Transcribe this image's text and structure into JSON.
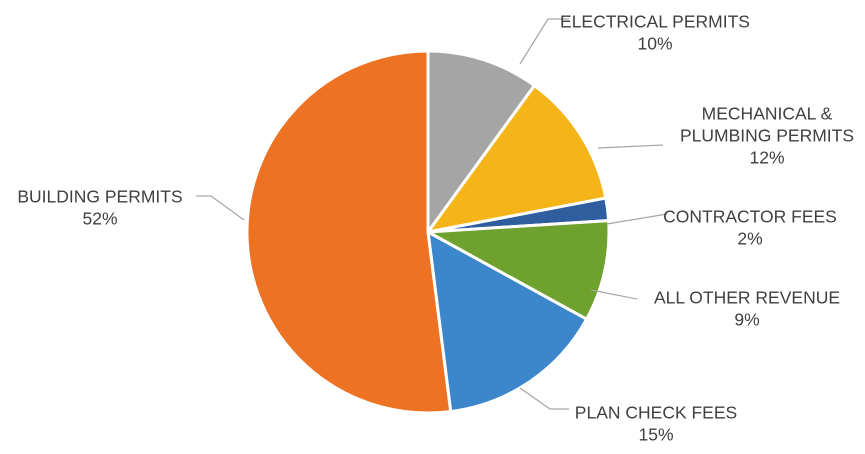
{
  "chart_data": {
    "type": "pie",
    "start_at": "12 o'clock",
    "direction": "clockwise",
    "slices": [
      {
        "label_lines": [
          "ELECTRICAL PERMITS"
        ],
        "value_label": "10%",
        "value": 10,
        "color": "#a5a5a5"
      },
      {
        "label_lines": [
          "MECHANICAL &",
          "PLUMBING PERMITS"
        ],
        "value_label": "12%",
        "value": 12,
        "color": "#f5b418"
      },
      {
        "label_lines": [
          "CONTRACTOR FEES"
        ],
        "value_label": "2%",
        "value": 2,
        "color": "#2e5e9e"
      },
      {
        "label_lines": [
          "ALL OTHER REVENUE"
        ],
        "value_label": "9%",
        "value": 9,
        "color": "#6ea12e"
      },
      {
        "label_lines": [
          "PLAN CHECK FEES"
        ],
        "value_label": "15%",
        "value": 15,
        "color": "#3c86cc"
      },
      {
        "label_lines": [
          "BUILDING PERMITS"
        ],
        "value_label": "52%",
        "value": 52,
        "color": "#ed7224"
      }
    ]
  }
}
